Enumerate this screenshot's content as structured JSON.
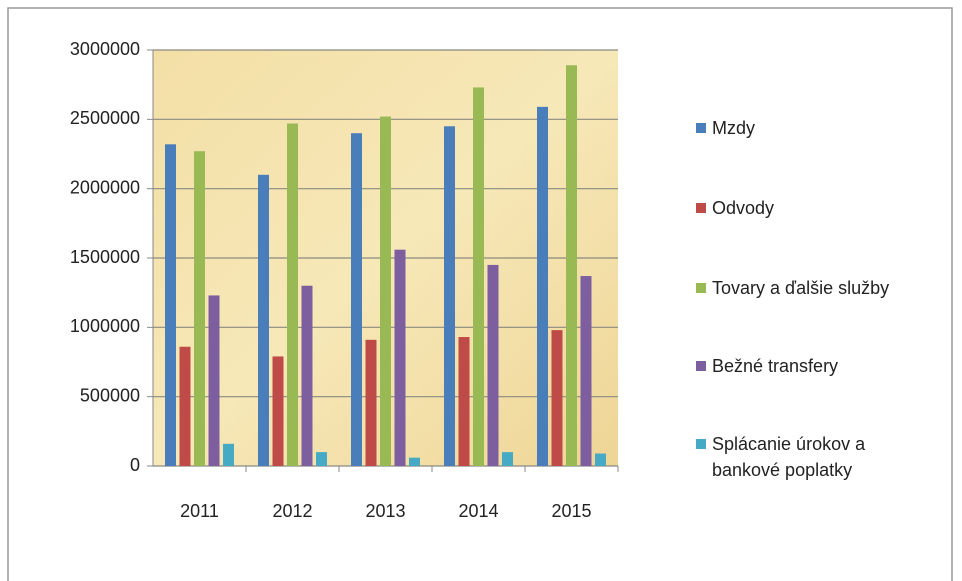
{
  "chart_data": {
    "type": "bar",
    "categories": [
      "2011",
      "2012",
      "2013",
      "2014",
      "2015"
    ],
    "series": [
      {
        "name": "Mzdy",
        "color": "#4a7ebb",
        "values": [
          2320000,
          2100000,
          2400000,
          2450000,
          2590000
        ]
      },
      {
        "name": "Odvody",
        "color": "#be4b48",
        "values": [
          860000,
          790000,
          910000,
          930000,
          980000
        ]
      },
      {
        "name": "Tovary a ďalšie služby",
        "color": "#98b954",
        "values": [
          2270000,
          2470000,
          2520000,
          2730000,
          2890000
        ]
      },
      {
        "name": "Bežné transfery",
        "color": "#7d5fa0",
        "values": [
          1230000,
          1300000,
          1560000,
          1450000,
          1370000
        ]
      },
      {
        "name": "Splácanie úrokov a bankové poplatky",
        "color": "#46aac5",
        "values": [
          160000,
          100000,
          60000,
          100000,
          90000
        ]
      }
    ],
    "ylim": [
      0,
      3000000
    ],
    "yticks": [
      0,
      500000,
      1000000,
      1500000,
      2000000,
      2500000,
      3000000
    ],
    "grid": true,
    "legend": "right"
  }
}
